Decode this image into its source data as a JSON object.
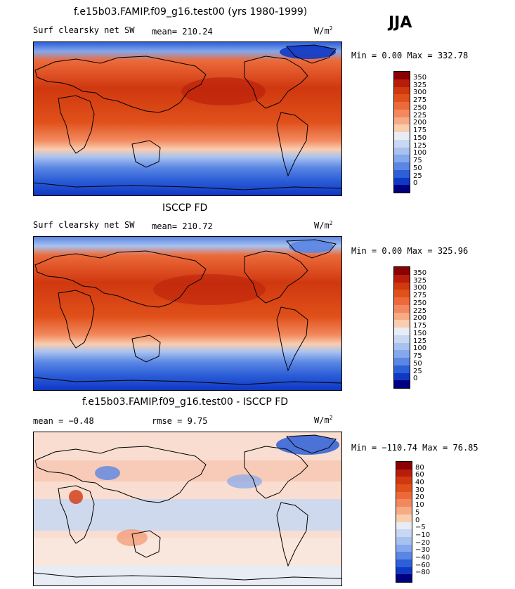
{
  "season": "JJA",
  "panels": [
    {
      "title": "f.e15b03.FAMIP.f09_g16.test00 (yrs 1980-1999)",
      "variable": "Surf clearsky net SW",
      "stat1": "mean= 210.24",
      "stat2": "",
      "units": "W/m",
      "units_sup": "2",
      "minmax": "Min =   0.00 Max = 332.78"
    },
    {
      "title": "ISCCP FD",
      "variable": "Surf clearsky net SW",
      "stat1": "mean= 210.72",
      "stat2": "",
      "units": "W/m",
      "units_sup": "2",
      "minmax": "Min =   0.00 Max = 325.96"
    },
    {
      "title": "f.e15b03.FAMIP.f09_g16.test00 - ISCCP FD",
      "variable": "",
      "stat1": "mean =  −0.48",
      "stat2": "rmse =   9.75",
      "units": "W/m",
      "units_sup": "2",
      "minmax": "Min = −110.74 Max =  76.85"
    }
  ],
  "chart_data": [
    {
      "type": "heatmap",
      "title": "f.e15b03.FAMIP.f09_g16.test00 (yrs 1980-1999)",
      "variable": "Surf clearsky net SW",
      "units": "W/m2",
      "mean": 210.24,
      "min": 0.0,
      "max": 332.78,
      "colorbar_levels": [
        350,
        325,
        300,
        275,
        250,
        225,
        200,
        175,
        150,
        125,
        100,
        75,
        50,
        25,
        0
      ],
      "colorbar_colors": [
        "#8b0000",
        "#b81c0a",
        "#d0380f",
        "#e0501a",
        "#ec6a3a",
        "#f2895e",
        "#f6ab85",
        "#f9cdb0",
        "#e8ecf4",
        "#c8d8f2",
        "#a8c2f0",
        "#85a8ec",
        "#5a86e4",
        "#2d5fd8",
        "#0f38c4",
        "#00007e"
      ]
    },
    {
      "type": "heatmap",
      "title": "ISCCP FD",
      "variable": "Surf clearsky net SW",
      "units": "W/m2",
      "mean": 210.72,
      "min": 0.0,
      "max": 325.96,
      "colorbar_levels": [
        350,
        325,
        300,
        275,
        250,
        225,
        200,
        175,
        150,
        125,
        100,
        75,
        50,
        25,
        0
      ],
      "colorbar_colors": [
        "#8b0000",
        "#b81c0a",
        "#d0380f",
        "#e0501a",
        "#ec6a3a",
        "#f2895e",
        "#f6ab85",
        "#f9cdb0",
        "#e8ecf4",
        "#c8d8f2",
        "#a8c2f0",
        "#85a8ec",
        "#5a86e4",
        "#2d5fd8",
        "#0f38c4",
        "#00007e"
      ]
    },
    {
      "type": "heatmap",
      "title": "f.e15b03.FAMIP.f09_g16.test00 - ISCCP FD",
      "units": "W/m2",
      "mean": -0.48,
      "rmse": 9.75,
      "min": -110.74,
      "max": 76.85,
      "colorbar_levels": [
        80,
        60,
        40,
        30,
        20,
        10,
        5,
        0,
        -5,
        -10,
        -20,
        -30,
        -40,
        -60,
        -80
      ],
      "colorbar_colors": [
        "#8b0000",
        "#b81c0a",
        "#d0380f",
        "#e0501a",
        "#ec6a3a",
        "#f2895e",
        "#f6ab85",
        "#f9cdb0",
        "#e8ecf4",
        "#c8d8f2",
        "#a8c2f0",
        "#85a8ec",
        "#5a86e4",
        "#2d5fd8",
        "#0f38c4",
        "#00007e"
      ]
    }
  ]
}
